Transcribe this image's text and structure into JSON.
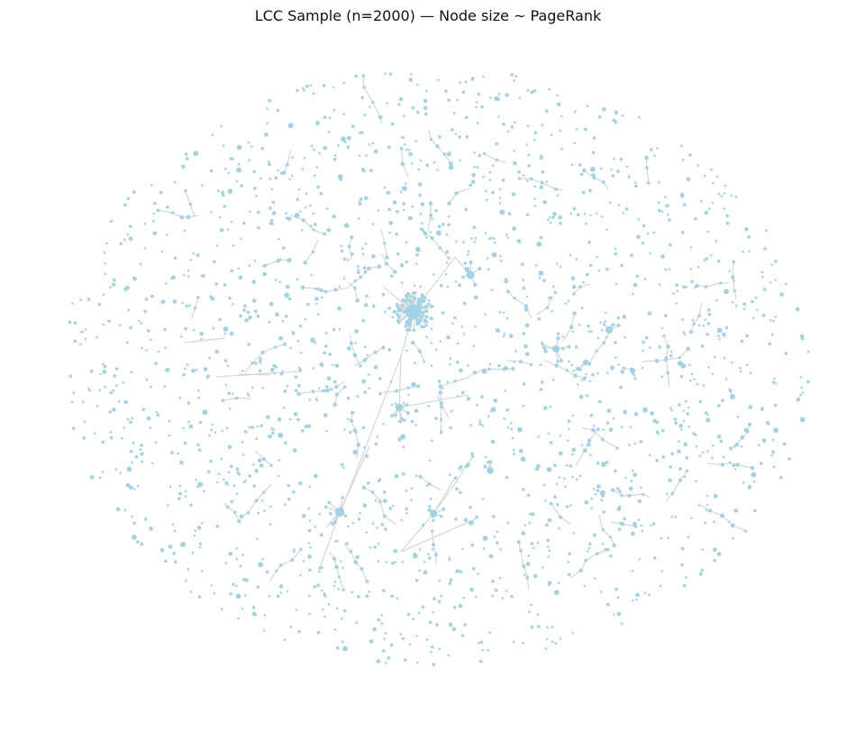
{
  "figure": {
    "title": "LCC Sample (n=2000) — Node size ~ PageRank"
  },
  "colors": {
    "node": "#9fd3e6",
    "edge": "#cfcfcf",
    "background": "#ffffff"
  }
}
